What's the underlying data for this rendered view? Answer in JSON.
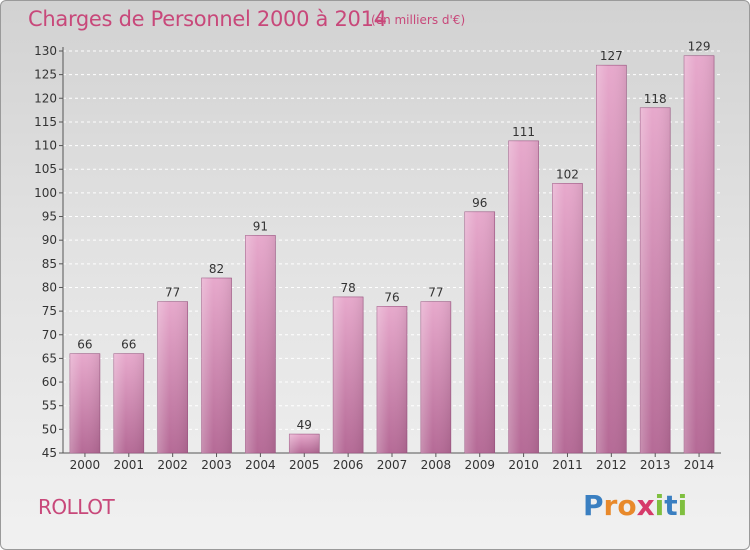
{
  "header": {
    "title": "Charges de Personnel 2000 à 2014",
    "subtitle": "(en milliers d'€)"
  },
  "footer": {
    "commune": "ROLLOT",
    "logo_letters": [
      "P",
      "r",
      "o",
      "x",
      "i",
      "t",
      "i"
    ],
    "logo_colors": [
      "#3a7fc1",
      "#e8892b",
      "#e8892b",
      "#d63a6a",
      "#7fbf3f",
      "#3a7fc1",
      "#7fbf3f"
    ]
  },
  "chart_data": {
    "type": "bar",
    "categories": [
      "2000",
      "2001",
      "2002",
      "2003",
      "2004",
      "2005",
      "2006",
      "2007",
      "2008",
      "2009",
      "2010",
      "2011",
      "2012",
      "2013",
      "2014"
    ],
    "values": [
      66,
      66,
      77,
      82,
      91,
      49,
      78,
      76,
      77,
      96,
      111,
      102,
      127,
      118,
      129
    ],
    "ylim": [
      45,
      130
    ],
    "yticks": [
      45,
      50,
      55,
      60,
      65,
      70,
      75,
      80,
      85,
      90,
      95,
      100,
      105,
      110,
      115,
      120,
      125,
      130
    ],
    "grid": true,
    "bar_color": "#d98cb6"
  }
}
